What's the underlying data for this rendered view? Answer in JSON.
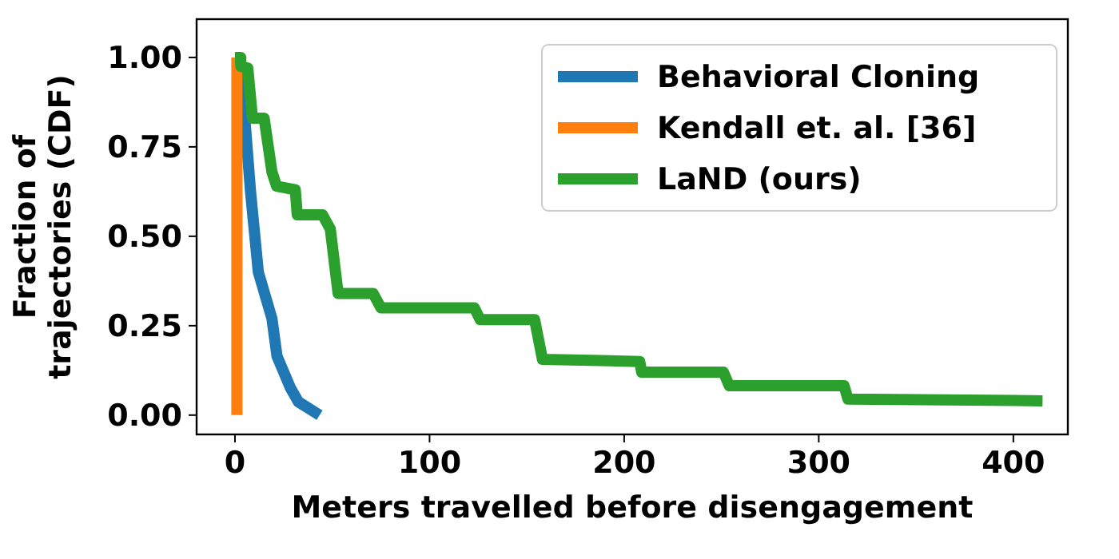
{
  "chart_data": {
    "type": "line",
    "xlabel": "Meters travelled before disengagement",
    "ylabel": "Fraction of\ntrajectories (CDF)",
    "xlim": [
      -19.7,
      428
    ],
    "ylim": [
      -0.054,
      1.107
    ],
    "xticks": [
      0,
      100,
      200,
      300,
      400
    ],
    "yticks": [
      {
        "value": 0,
        "label": "0.00"
      },
      {
        "value": 0.25,
        "label": "0.25"
      },
      {
        "value": 0.5,
        "label": "0.50"
      },
      {
        "value": 0.75,
        "label": "0.75"
      },
      {
        "value": 1,
        "label": "1.00"
      }
    ],
    "legend": "top right",
    "grid": false,
    "marker": "none",
    "line_style": "solid",
    "series": [
      {
        "name": "Behavioral Cloning",
        "color": "#1f77b4",
        "x": [
          1,
          3.9,
          5.2,
          8,
          12,
          19,
          21.6,
          28.5,
          32.6,
          43.5
        ],
        "values": [
          1,
          0.95,
          0.82,
          0.625,
          0.4,
          0.27,
          0.165,
          0.076,
          0.037,
          0
        ]
      },
      {
        "name": "Kendall et. al. [36]",
        "color": "#ff7f0e",
        "x": [
          1,
          1
        ],
        "values": [
          1,
          0
        ]
      },
      {
        "name": "LaND (ours)",
        "color": "#2ca02c",
        "x": [
          0,
          3,
          3,
          6.6,
          9,
          15,
          19,
          21.4,
          31,
          32,
          45,
          49,
          53,
          71,
          75,
          123,
          126,
          154,
          158,
          208,
          209,
          251,
          254,
          313,
          315,
          415
        ],
        "values": [
          1,
          1,
          0.975,
          0.97,
          0.83,
          0.83,
          0.68,
          0.64,
          0.63,
          0.56,
          0.56,
          0.52,
          0.34,
          0.34,
          0.3,
          0.3,
          0.267,
          0.267,
          0.156,
          0.15,
          0.12,
          0.12,
          0.082,
          0.082,
          0.045,
          0.04
        ]
      }
    ]
  }
}
